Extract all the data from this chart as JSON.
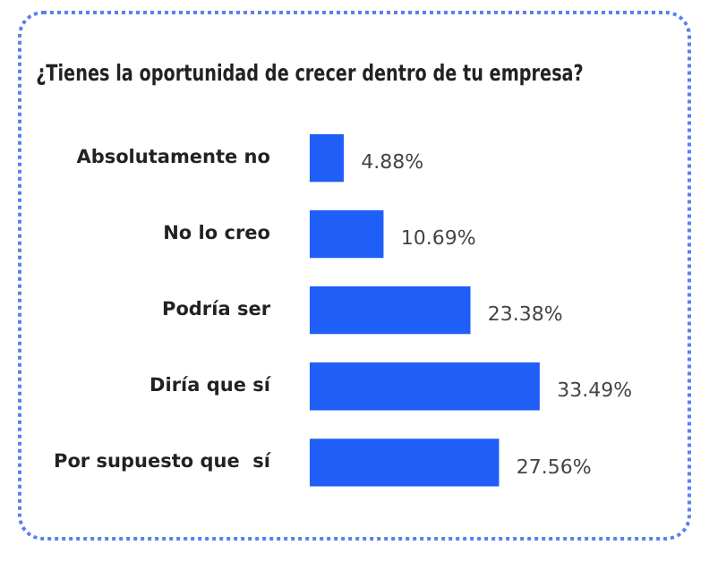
{
  "chart_data": {
    "type": "bar",
    "orientation": "horizontal",
    "title": "¿Tienes la oportunidad de crecer dentro de tu empresa?",
    "categories": [
      "Absolutamente no",
      "No lo creo",
      "Podría ser",
      "Diría que sí",
      "Por supuesto que  sí"
    ],
    "values": [
      4.88,
      10.69,
      23.38,
      33.49,
      27.56
    ],
    "value_labels": [
      "4.88%",
      "10.69%",
      "23.38%",
      "33.49%",
      "27.56%"
    ],
    "color": "#1f5ef7"
  }
}
